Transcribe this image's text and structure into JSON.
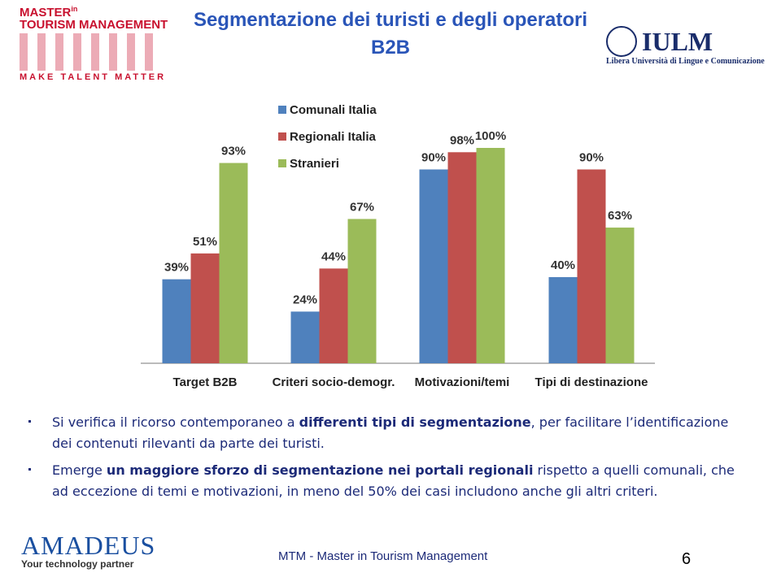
{
  "header": {
    "title": "Segmentazione dei turisti e degli operatori B2B",
    "logo_left": {
      "line1": "MASTER",
      "superscript": "in",
      "line2": "TOURISM MANAGEMENT",
      "tagline": "MAKE TALENT MATTER"
    },
    "logo_right": {
      "name": "IULM",
      "subtitle": "Libera Università di Lingue e Comunicazione"
    }
  },
  "chart_data": {
    "type": "bar",
    "categories": [
      "Target B2B",
      "Criteri socio-demogr.",
      "Motivazioni/temi",
      "Tipi di destinazione"
    ],
    "series": [
      {
        "name": "Comunali Italia",
        "color": "#4f81bd",
        "values": [
          39,
          24,
          90,
          40
        ],
        "value_labels": [
          "39%",
          "24%",
          "90%",
          "40%"
        ]
      },
      {
        "name": "Regionali Italia",
        "color": "#c0504d",
        "values": [
          51,
          44,
          98,
          90
        ],
        "value_labels": [
          "51%",
          "44%",
          "98%",
          "90%"
        ]
      },
      {
        "name": "Stranieri",
        "color": "#9bbb59",
        "values": [
          93,
          67,
          100,
          63
        ],
        "value_labels": [
          "93%",
          "67%",
          "100%",
          "63%"
        ]
      }
    ],
    "legend": "top-left"
  },
  "bullets": [
    [
      {
        "text": "Si verifica il ricorso contemporaneo a ",
        "bold": false
      },
      {
        "text": "differenti tipi di segmentazione",
        "bold": true
      },
      {
        "text": ", per facilitare l’identificazione dei contenuti rilevanti da parte dei turisti.",
        "bold": false
      }
    ],
    [
      {
        "text": "Emerge ",
        "bold": false
      },
      {
        "text": "un maggiore sforzo di segmentazione nei portali regionali",
        "bold": true
      },
      {
        "text": " rispetto a quelli comunali, che ad eccezione di temi e motivazioni, in meno del 50% dei casi includono anche gli altri criteri.",
        "bold": false
      }
    ]
  ],
  "footer": {
    "sponsor": "AMADEUS",
    "sponsor_tagline": "Your technology partner",
    "text": "MTM - Master in Tourism Management",
    "page": "6"
  }
}
